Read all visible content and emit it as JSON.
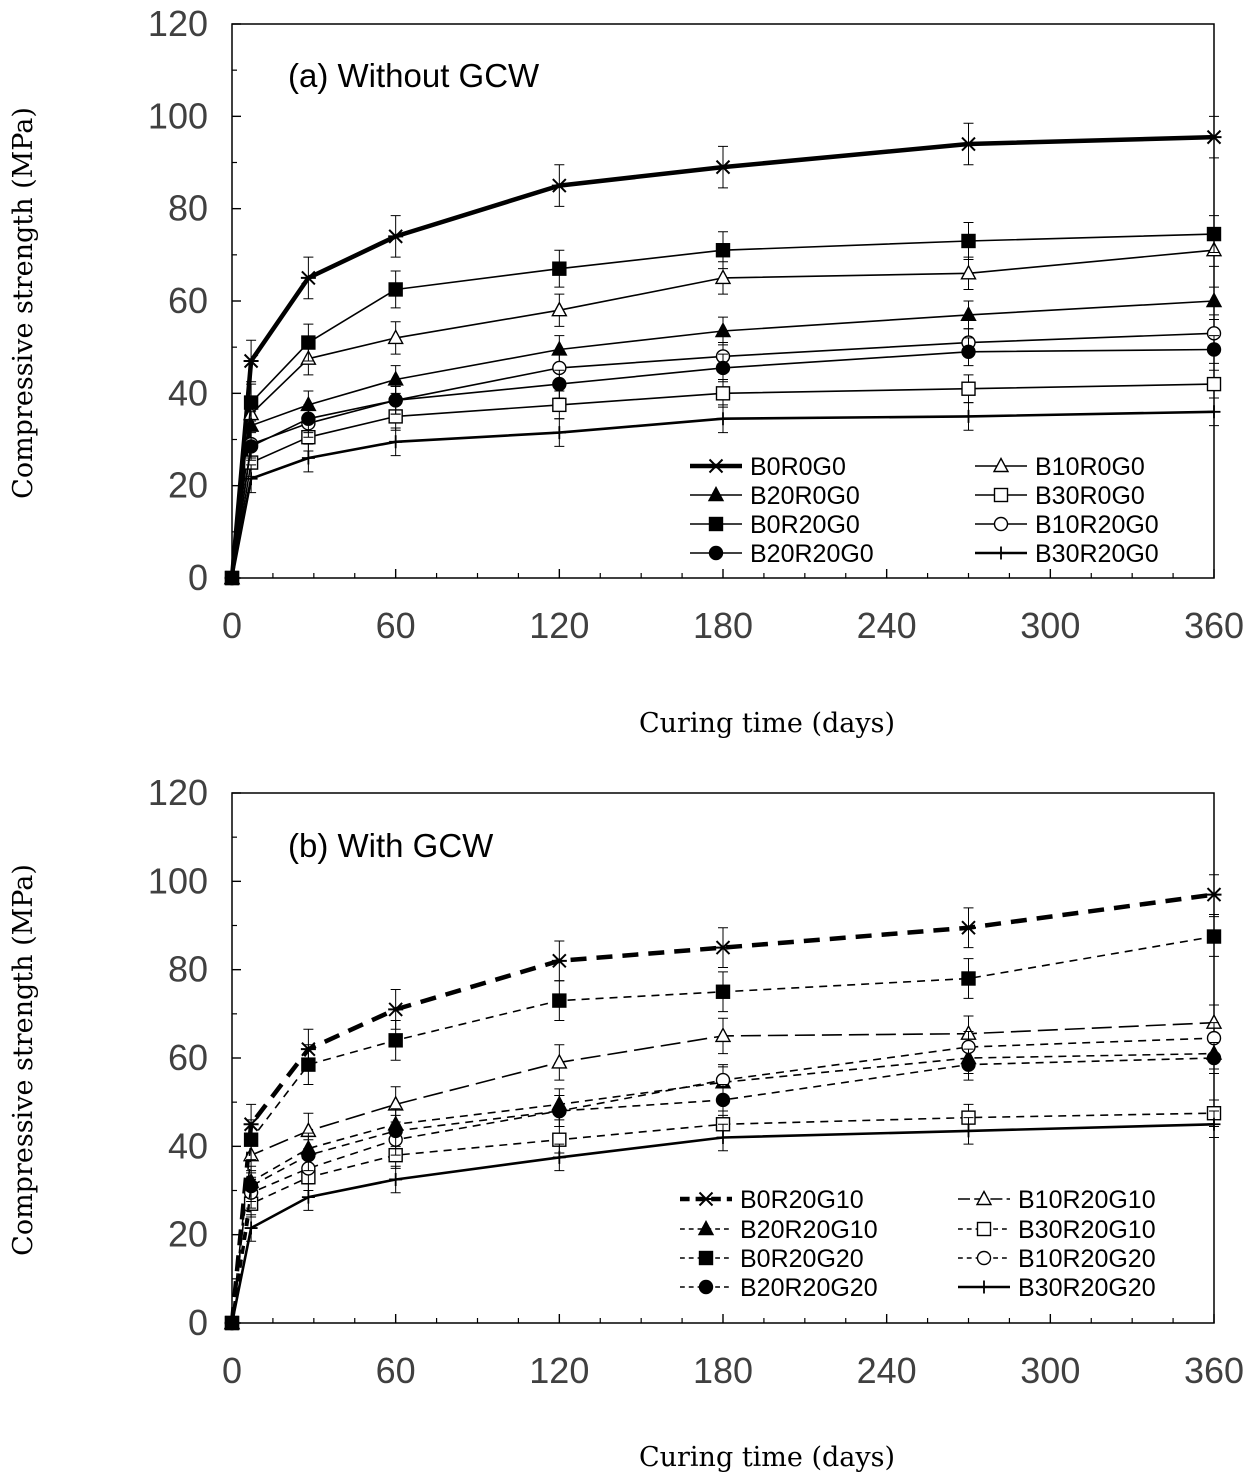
{
  "chart_data": [
    {
      "type": "line",
      "panel": "a",
      "title": "(a) Without GCW",
      "xlabel": "Curing time (days)",
      "ylabel": "Compressive strength (MPa)",
      "xlim": [
        0,
        360
      ],
      "ylim": [
        0,
        120
      ],
      "xticks": [
        "0",
        "60",
        "120",
        "180",
        "240",
        "300",
        "360"
      ],
      "yticks": [
        "0",
        "20",
        "40",
        "60",
        "80",
        "100",
        "120"
      ],
      "x": [
        0,
        7,
        28,
        60,
        120,
        180,
        270,
        360
      ],
      "legend_position": "bottom-right",
      "series": [
        {
          "name": "B0R0G0",
          "marker": "star",
          "line": "solid-bold",
          "values": [
            0,
            47,
            65,
            74,
            85,
            89,
            94,
            95.5
          ],
          "error": [
            0,
            4.5,
            4.5,
            4.5,
            4.5,
            4.5,
            4.5,
            4.5
          ]
        },
        {
          "name": "B10R0G0",
          "marker": "triangle-open",
          "line": "solid",
          "values": [
            0,
            35.5,
            47.5,
            52,
            58,
            65,
            66,
            71
          ],
          "error": [
            0,
            3.5,
            3.5,
            3.5,
            3.5,
            3.5,
            3.5,
            3.5
          ]
        },
        {
          "name": "B20R0G0",
          "marker": "triangle-filled",
          "line": "solid",
          "values": [
            0,
            33,
            37.5,
            43,
            49.5,
            53.5,
            57,
            60
          ],
          "error": [
            0,
            3,
            3,
            3,
            3,
            3,
            3,
            3
          ]
        },
        {
          "name": "B30R0G0",
          "marker": "square-open",
          "line": "solid",
          "values": [
            0,
            25,
            30.5,
            35,
            37.5,
            40,
            41,
            42
          ],
          "error": [
            0,
            3,
            3,
            3,
            3,
            3,
            3,
            3
          ]
        },
        {
          "name": "B0R20G0",
          "marker": "square-filled",
          "line": "solid",
          "values": [
            0,
            38,
            51,
            62.5,
            67,
            71,
            73,
            74.5
          ],
          "error": [
            0,
            4,
            4,
            4,
            4,
            4,
            4,
            4
          ]
        },
        {
          "name": "B10R20G0",
          "marker": "circle-open",
          "line": "solid",
          "values": [
            0,
            29,
            33.5,
            38.5,
            45.5,
            48,
            51,
            53
          ],
          "error": [
            0,
            3,
            3,
            3,
            3,
            3,
            3,
            3
          ]
        },
        {
          "name": "B20R20G0",
          "marker": "circle-filled",
          "line": "solid",
          "values": [
            0,
            28.5,
            34.5,
            38.5,
            42,
            45.5,
            49,
            49.5
          ],
          "error": [
            0,
            3,
            3,
            3,
            3,
            3,
            3,
            3
          ]
        },
        {
          "name": "B30R20G0",
          "marker": "plus",
          "line": "solid-medium",
          "values": [
            0,
            21.5,
            26,
            29.5,
            31.5,
            34.5,
            35,
            36
          ],
          "error": [
            0,
            3,
            3,
            3,
            3,
            3,
            3,
            3
          ]
        }
      ]
    },
    {
      "type": "line",
      "panel": "b",
      "title": "(b) With GCW",
      "xlabel": "Curing time (days)",
      "ylabel": "Compressive strength (MPa)",
      "xlim": [
        0,
        360
      ],
      "ylim": [
        0,
        120
      ],
      "xticks": [
        "0",
        "60",
        "120",
        "180",
        "240",
        "300",
        "360"
      ],
      "yticks": [
        "0",
        "20",
        "40",
        "60",
        "80",
        "100",
        "120"
      ],
      "x": [
        0,
        7,
        28,
        60,
        120,
        180,
        270,
        360
      ],
      "legend_position": "bottom-right",
      "series": [
        {
          "name": "B0R20G10",
          "marker": "star",
          "line": "dashed-bold",
          "values": [
            0,
            45,
            62,
            71,
            82,
            85,
            89.5,
            97
          ],
          "error": [
            0,
            4.5,
            4.5,
            4.5,
            4.5,
            4.5,
            4.5,
            4.5
          ]
        },
        {
          "name": "B10R20G10",
          "marker": "triangle-open",
          "line": "longdash",
          "values": [
            0,
            38,
            43.5,
            49.5,
            59,
            65,
            65.5,
            68
          ],
          "error": [
            0,
            4,
            4,
            4,
            4,
            4,
            4,
            4
          ]
        },
        {
          "name": "B20R20G10",
          "marker": "triangle-filled",
          "line": "dashed",
          "values": [
            0,
            32,
            39.5,
            45,
            49.5,
            54.5,
            60,
            61
          ],
          "error": [
            0,
            3.5,
            3.5,
            3.5,
            3.5,
            3.5,
            3.5,
            3.5
          ]
        },
        {
          "name": "B30R20G10",
          "marker": "square-open",
          "line": "dashed",
          "values": [
            0,
            27,
            33,
            38,
            41.5,
            45,
            46.5,
            47.5
          ],
          "error": [
            0,
            3,
            3,
            3,
            3,
            3,
            3,
            3
          ]
        },
        {
          "name": "B0R20G20",
          "marker": "square-filled",
          "line": "dashed",
          "values": [
            0,
            41.5,
            58.5,
            64,
            73,
            75,
            78,
            87.5
          ],
          "error": [
            0,
            4.5,
            4.5,
            4.5,
            4.5,
            4.5,
            4.5,
            4.5
          ]
        },
        {
          "name": "B10R20G20",
          "marker": "circle-open",
          "line": "dashed",
          "values": [
            0,
            29.5,
            35,
            41.5,
            48,
            55,
            62.5,
            64.5
          ],
          "error": [
            0,
            3.5,
            3.5,
            3.5,
            3.5,
            3.5,
            3.5,
            3.5
          ]
        },
        {
          "name": "B20R20G20",
          "marker": "circle-filled",
          "line": "dashed",
          "values": [
            0,
            31,
            38,
            43.5,
            48,
            50.5,
            58.5,
            60
          ],
          "error": [
            0,
            3.5,
            3.5,
            3.5,
            3.5,
            3.5,
            3.5,
            3.5
          ]
        },
        {
          "name": "B30R20G20",
          "marker": "plus",
          "line": "solid-medium",
          "values": [
            0,
            21.5,
            28.5,
            32.5,
            37.5,
            42,
            43.5,
            45
          ],
          "error": [
            0,
            3,
            3,
            3,
            3,
            3,
            3,
            3
          ]
        }
      ]
    }
  ]
}
